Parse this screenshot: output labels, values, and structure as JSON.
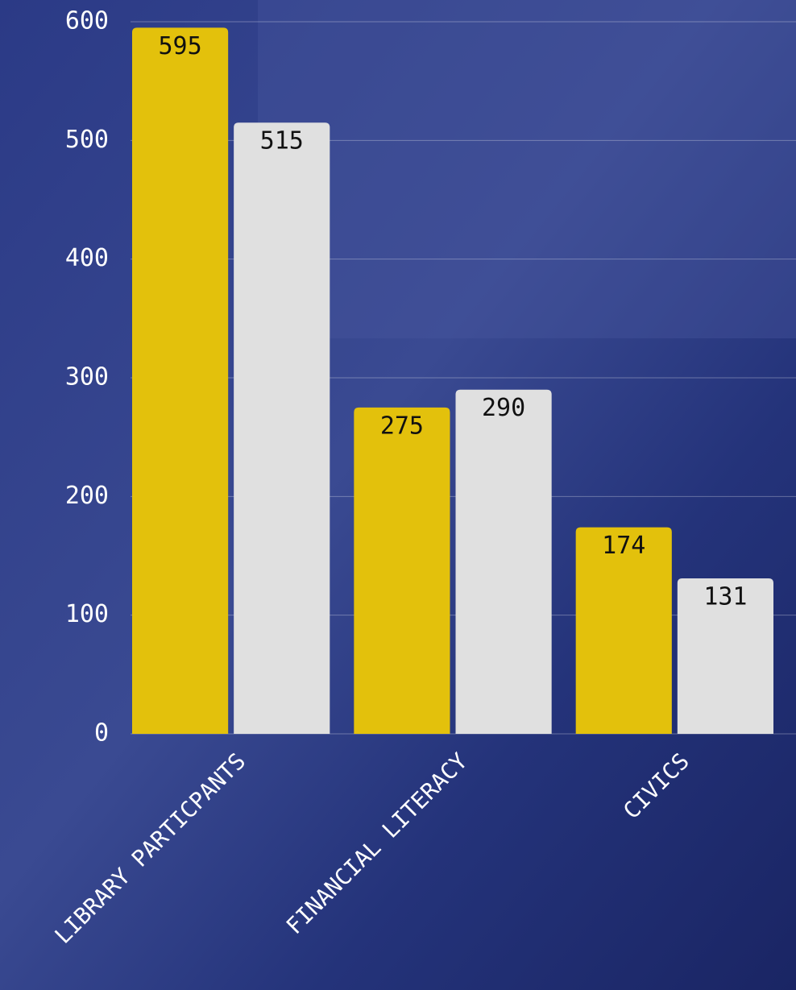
{
  "chart_data": {
    "type": "bar",
    "categories": [
      "LIBRARY PARTICPANTS",
      "FINANCIAL LITERACY",
      "CIVICS"
    ],
    "series": [
      {
        "color": "#e3c10c",
        "values": [
          595,
          275,
          174
        ]
      },
      {
        "color": "#e0e0e0",
        "values": [
          515,
          290,
          131
        ]
      }
    ],
    "ylim": [
      0,
      600
    ],
    "yticks": [
      0,
      100,
      200,
      300,
      400,
      500,
      600
    ],
    "grid": true
  }
}
